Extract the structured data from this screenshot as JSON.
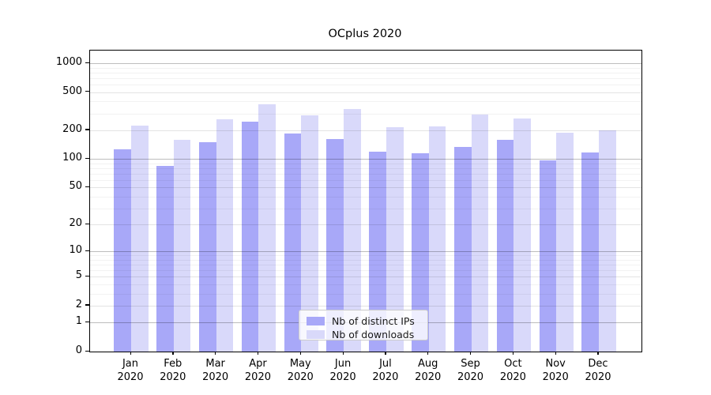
{
  "title": "OCplus 2020",
  "chart_data": {
    "type": "bar",
    "title": "OCplus 2020",
    "categories": [
      "Jan 2020",
      "Feb 2020",
      "Mar 2020",
      "Apr 2020",
      "May 2020",
      "Jun 2020",
      "Jul 2020",
      "Aug 2020",
      "Sep 2020",
      "Oct 2020",
      "Nov 2020",
      "Dec 2020"
    ],
    "month_labels": [
      "Jan",
      "Feb",
      "Mar",
      "Apr",
      "May",
      "Jun",
      "Jul",
      "Aug",
      "Sep",
      "Oct",
      "Nov",
      "Dec"
    ],
    "year_label": "2020",
    "series": [
      {
        "name": "Nb of distinct IPs",
        "color": "#a8a8f8",
        "values": [
          127,
          85,
          150,
          247,
          185,
          162,
          120,
          115,
          133,
          158,
          97,
          117
        ]
      },
      {
        "name": "Nb of downloads",
        "color": "#d9d9fa",
        "values": [
          225,
          158,
          260,
          375,
          287,
          330,
          217,
          220,
          290,
          266,
          190,
          200
        ]
      }
    ],
    "yscale": "log1p",
    "yticks": [
      0,
      1,
      2,
      5,
      10,
      20,
      50,
      100,
      200,
      500,
      1000
    ],
    "minor_yticks": [
      3,
      4,
      6,
      7,
      8,
      9,
      30,
      40,
      60,
      70,
      80,
      90,
      300,
      400,
      600,
      700,
      800,
      900
    ],
    "decade_ticks": [
      1,
      10,
      100,
      1000
    ],
    "ylim": [
      0,
      1355
    ],
    "grid": true,
    "legend_position": "lower-center"
  },
  "colors": {
    "distinct_ips_bar": "#a8a8f8",
    "downloads_bar": "#d9d9fa",
    "grid_major": "#bdbdbd",
    "grid_minor": "#ededed",
    "axis": "#000000",
    "background": "#ffffff"
  }
}
